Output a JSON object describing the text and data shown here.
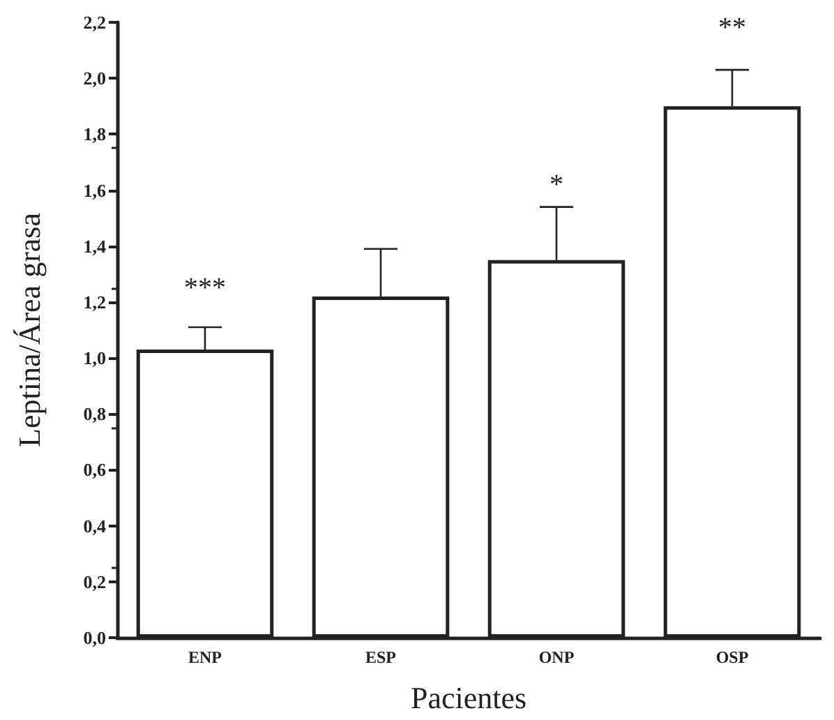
{
  "chart_data": {
    "type": "bar",
    "xlabel": "Pacientes",
    "ylabel": "Leptina/Área grasa",
    "categories": [
      "ENP",
      "ESP",
      "ONP",
      "OSP"
    ],
    "values": [
      1.03,
      1.22,
      1.35,
      1.9
    ],
    "errors": [
      [
        1.03,
        1.11
      ],
      [
        1.22,
        1.39
      ],
      [
        1.35,
        1.54
      ],
      [
        1.9,
        2.03
      ]
    ],
    "color": "#ffffff",
    "ylim": [
      0,
      2.2
    ],
    "yticks": [
      {
        "value": 0,
        "label": "0,0"
      },
      {
        "value": 0.2,
        "label": "0,2"
      },
      {
        "value": 0.4,
        "label": "0,4"
      },
      {
        "value": 0.6,
        "label": "0,6"
      },
      {
        "value": 0.8,
        "label": "0,8"
      },
      {
        "value": 1.0,
        "label": "1,0"
      },
      {
        "value": 1.2,
        "label": "1,2"
      },
      {
        "value": 1.4,
        "label": "1,4"
      },
      {
        "value": 1.6,
        "label": "1,6"
      },
      {
        "value": 1.8,
        "label": "1,8"
      },
      {
        "value": 2.0,
        "label": "2,0"
      },
      {
        "value": 2.2,
        "label": "2,2"
      }
    ],
    "annotations": [
      {
        "text": "***",
        "x": "ENP",
        "y": 1.11
      },
      {
        "text": "*",
        "x": "ONP",
        "y": 1.54
      },
      {
        "text": "**",
        "x": "OSP",
        "y": 2.03
      }
    ],
    "grid": false
  }
}
